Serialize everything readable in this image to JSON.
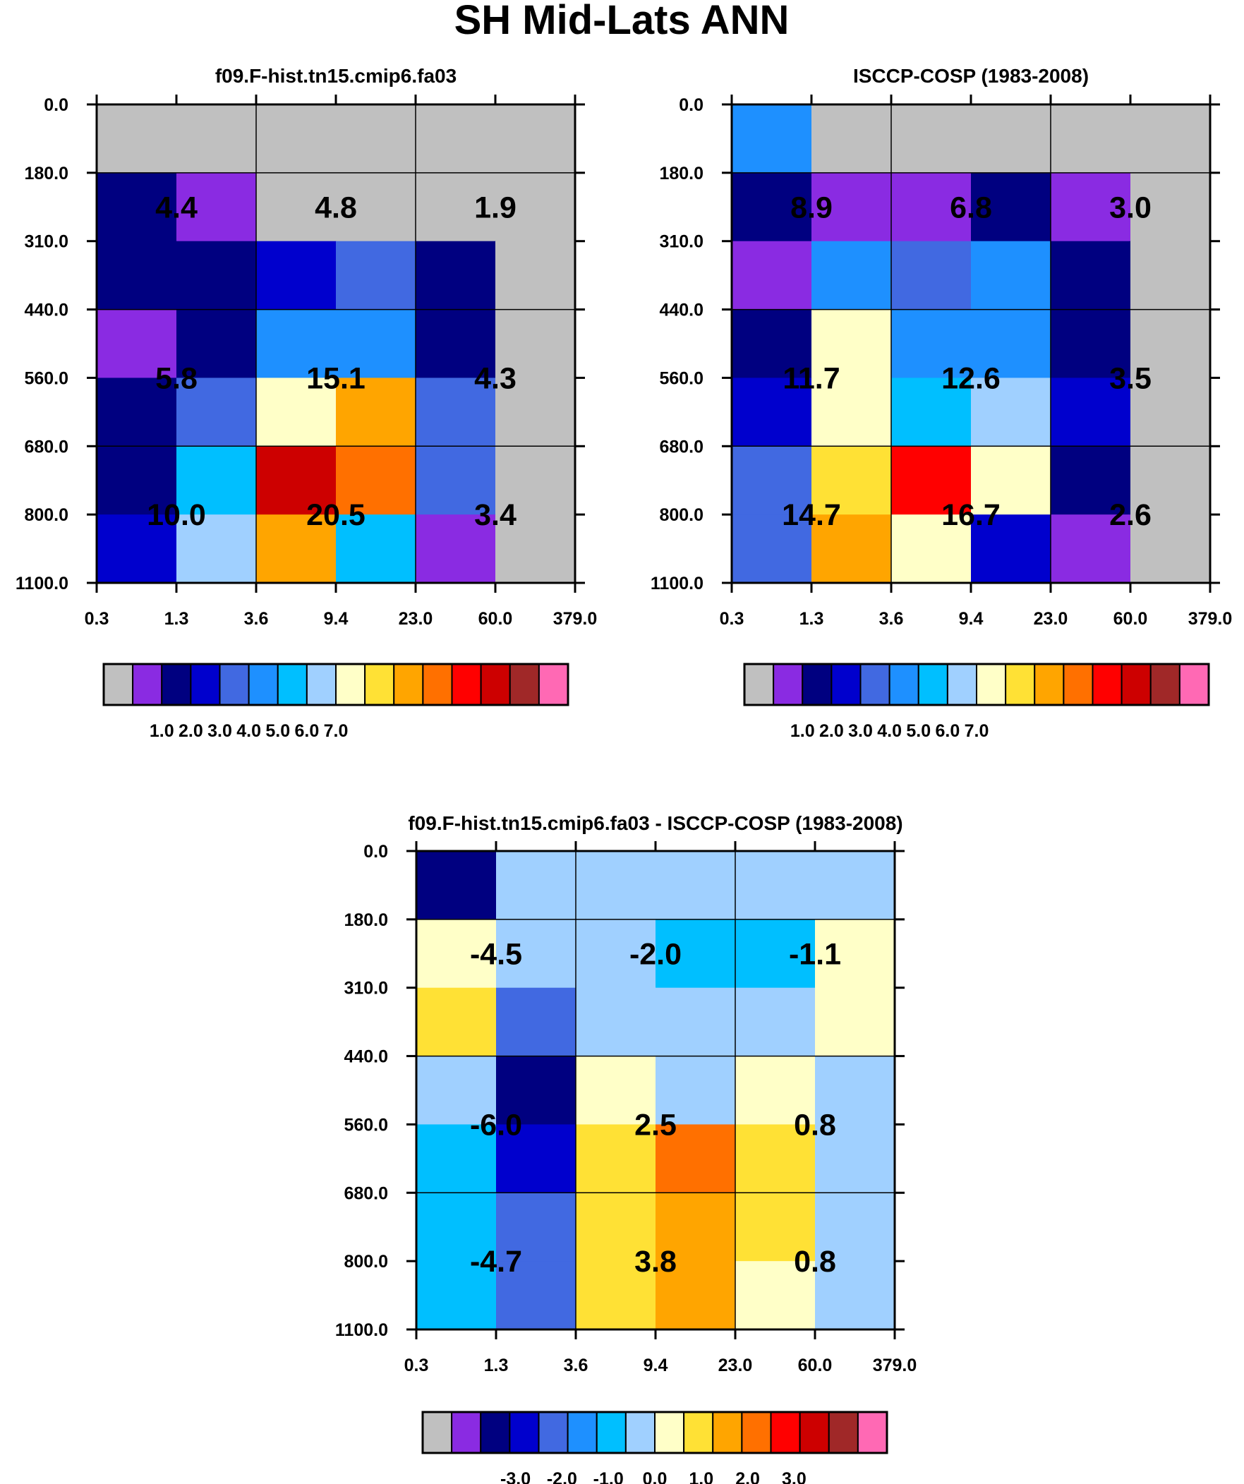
{
  "figure": {
    "title": "SH Mid-Lats ANN",
    "x_ticks": [
      "0.3",
      "1.3",
      "3.6",
      "9.4",
      "23.0",
      "60.0",
      "379.0"
    ],
    "y_ticks": [
      "0.0",
      "180.0",
      "310.0",
      "440.0",
      "560.0",
      "680.0",
      "800.0",
      "1100.0"
    ]
  },
  "colors": {
    "gray": "#c0c0c0",
    "purple": "#8a2be2",
    "navy": "#000080",
    "mediumblue": "#0000cd",
    "royalblue": "#4169e1",
    "dodgerblue": "#1e90ff",
    "deepskyblue": "#00bfff",
    "lightskyblue": "#a0d0ff",
    "lemonchiffon": "#ffffc8",
    "gold": "#ffe135",
    "orange": "#ffa500",
    "darkorange": "#ff7000",
    "red": "#ff0000",
    "darkred": "#cd0000",
    "brown": "#a02828",
    "hotpink": "#ff69b4"
  },
  "chart_data": [
    {
      "type": "heatmap",
      "title": "f09.F-hist.tn15.cmip6.fa03",
      "x_ticks": [
        "0.3",
        "1.3",
        "3.6",
        "9.4",
        "23.0",
        "60.0",
        "379.0"
      ],
      "y_ticks": [
        "0.0",
        "180.0",
        "310.0",
        "440.0",
        "560.0",
        "680.0",
        "800.0",
        "1100.0"
      ],
      "cell_colors": [
        [
          "gray",
          "gray",
          "gray",
          "gray",
          "gray",
          "gray"
        ],
        [
          "navy",
          "purple",
          "gray",
          "gray",
          "gray",
          "gray"
        ],
        [
          "navy",
          "navy",
          "mediumblue",
          "royalblue",
          "navy",
          "gray"
        ],
        [
          "purple",
          "navy",
          "dodgerblue",
          "dodgerblue",
          "navy",
          "gray"
        ],
        [
          "navy",
          "royalblue",
          "lemonchiffon",
          "orange",
          "royalblue",
          "gray"
        ],
        [
          "navy",
          "deepskyblue",
          "darkred",
          "darkorange",
          "royalblue",
          "gray"
        ],
        [
          "mediumblue",
          "lightskyblue",
          "orange",
          "deepskyblue",
          "purple",
          "gray"
        ]
      ],
      "summary_values": [
        [
          "4.4",
          "4.8",
          "1.9"
        ],
        [
          "5.8",
          "15.1",
          "4.3"
        ],
        [
          "10.0",
          "20.5",
          "3.4"
        ]
      ],
      "colorbar": {
        "colors": [
          "gray",
          "purple",
          "navy",
          "mediumblue",
          "royalblue",
          "dodgerblue",
          "deepskyblue",
          "lightskyblue",
          "lemonchiffon",
          "gold",
          "orange",
          "darkorange",
          "red",
          "darkred",
          "brown",
          "hotpink"
        ],
        "tick_labels": [
          "1.0",
          "2.0",
          "3.0",
          "4.0",
          "5.0",
          "6.0",
          "7.0"
        ],
        "tick_values": [
          1.0,
          2.0,
          3.0,
          4.0,
          5.0,
          6.0,
          7.0
        ],
        "range": [
          -1.0,
          15.0
        ]
      }
    },
    {
      "type": "heatmap",
      "title": "ISCCP-COSP (1983-2008)",
      "x_ticks": [
        "0.3",
        "1.3",
        "3.6",
        "9.4",
        "23.0",
        "60.0",
        "379.0"
      ],
      "y_ticks": [
        "0.0",
        "180.0",
        "310.0",
        "440.0",
        "560.0",
        "680.0",
        "800.0",
        "1100.0"
      ],
      "cell_colors": [
        [
          "dodgerblue",
          "gray",
          "gray",
          "gray",
          "gray",
          "gray"
        ],
        [
          "navy",
          "purple",
          "purple",
          "navy",
          "purple",
          "gray"
        ],
        [
          "purple",
          "dodgerblue",
          "royalblue",
          "dodgerblue",
          "navy",
          "gray"
        ],
        [
          "navy",
          "lemonchiffon",
          "dodgerblue",
          "dodgerblue",
          "navy",
          "gray"
        ],
        [
          "mediumblue",
          "lemonchiffon",
          "deepskyblue",
          "lightskyblue",
          "mediumblue",
          "gray"
        ],
        [
          "royalblue",
          "gold",
          "red",
          "lemonchiffon",
          "navy",
          "gray"
        ],
        [
          "royalblue",
          "orange",
          "lemonchiffon",
          "mediumblue",
          "purple",
          "gray"
        ]
      ],
      "summary_values": [
        [
          "8.9",
          "6.8",
          "3.0"
        ],
        [
          "11.7",
          "12.6",
          "3.5"
        ],
        [
          "14.7",
          "16.7",
          "2.6"
        ]
      ],
      "colorbar": {
        "colors": [
          "gray",
          "purple",
          "navy",
          "mediumblue",
          "royalblue",
          "dodgerblue",
          "deepskyblue",
          "lightskyblue",
          "lemonchiffon",
          "gold",
          "orange",
          "darkorange",
          "red",
          "darkred",
          "brown",
          "hotpink"
        ],
        "tick_labels": [
          "1.0",
          "2.0",
          "3.0",
          "4.0",
          "5.0",
          "6.0",
          "7.0"
        ],
        "tick_values": [
          1.0,
          2.0,
          3.0,
          4.0,
          5.0,
          6.0,
          7.0
        ],
        "range": [
          -1.0,
          15.0
        ]
      }
    },
    {
      "type": "heatmap",
      "title": "f09.F-hist.tn15.cmip6.fa03 - ISCCP-COSP (1983-2008)",
      "x_ticks": [
        "0.3",
        "1.3",
        "3.6",
        "9.4",
        "23.0",
        "60.0",
        "379.0"
      ],
      "y_ticks": [
        "0.0",
        "180.0",
        "310.0",
        "440.0",
        "560.0",
        "680.0",
        "800.0",
        "1100.0"
      ],
      "cell_colors": [
        [
          "navy",
          "lightskyblue",
          "lightskyblue",
          "lightskyblue",
          "lightskyblue",
          "lightskyblue"
        ],
        [
          "lemonchiffon",
          "lightskyblue",
          "lightskyblue",
          "deepskyblue",
          "deepskyblue",
          "lemonchiffon"
        ],
        [
          "gold",
          "royalblue",
          "lightskyblue",
          "lightskyblue",
          "lightskyblue",
          "lemonchiffon"
        ],
        [
          "lightskyblue",
          "navy",
          "lemonchiffon",
          "lightskyblue",
          "lemonchiffon",
          "lightskyblue"
        ],
        [
          "deepskyblue",
          "mediumblue",
          "gold",
          "darkorange",
          "gold",
          "lightskyblue"
        ],
        [
          "deepskyblue",
          "royalblue",
          "gold",
          "orange",
          "gold",
          "lightskyblue"
        ],
        [
          "deepskyblue",
          "royalblue",
          "gold",
          "orange",
          "lemonchiffon",
          "lightskyblue"
        ]
      ],
      "summary_values": [
        [
          "-4.5",
          "-2.0",
          "-1.1"
        ],
        [
          "-6.0",
          "2.5",
          "0.8"
        ],
        [
          "-4.7",
          "3.8",
          "0.8"
        ]
      ],
      "colorbar": {
        "colors": [
          "gray",
          "purple",
          "navy",
          "mediumblue",
          "royalblue",
          "dodgerblue",
          "deepskyblue",
          "lightskyblue",
          "lemonchiffon",
          "gold",
          "orange",
          "darkorange",
          "red",
          "darkred",
          "brown",
          "hotpink"
        ],
        "tick_labels": [
          "-3.0",
          "-2.0",
          "-1.0",
          "0.0",
          "1.0",
          "2.0",
          "3.0"
        ],
        "tick_values": [
          -3.0,
          -2.0,
          -1.0,
          0.0,
          1.0,
          2.0,
          3.0
        ],
        "range": [
          -5.0,
          5.0
        ]
      }
    }
  ]
}
